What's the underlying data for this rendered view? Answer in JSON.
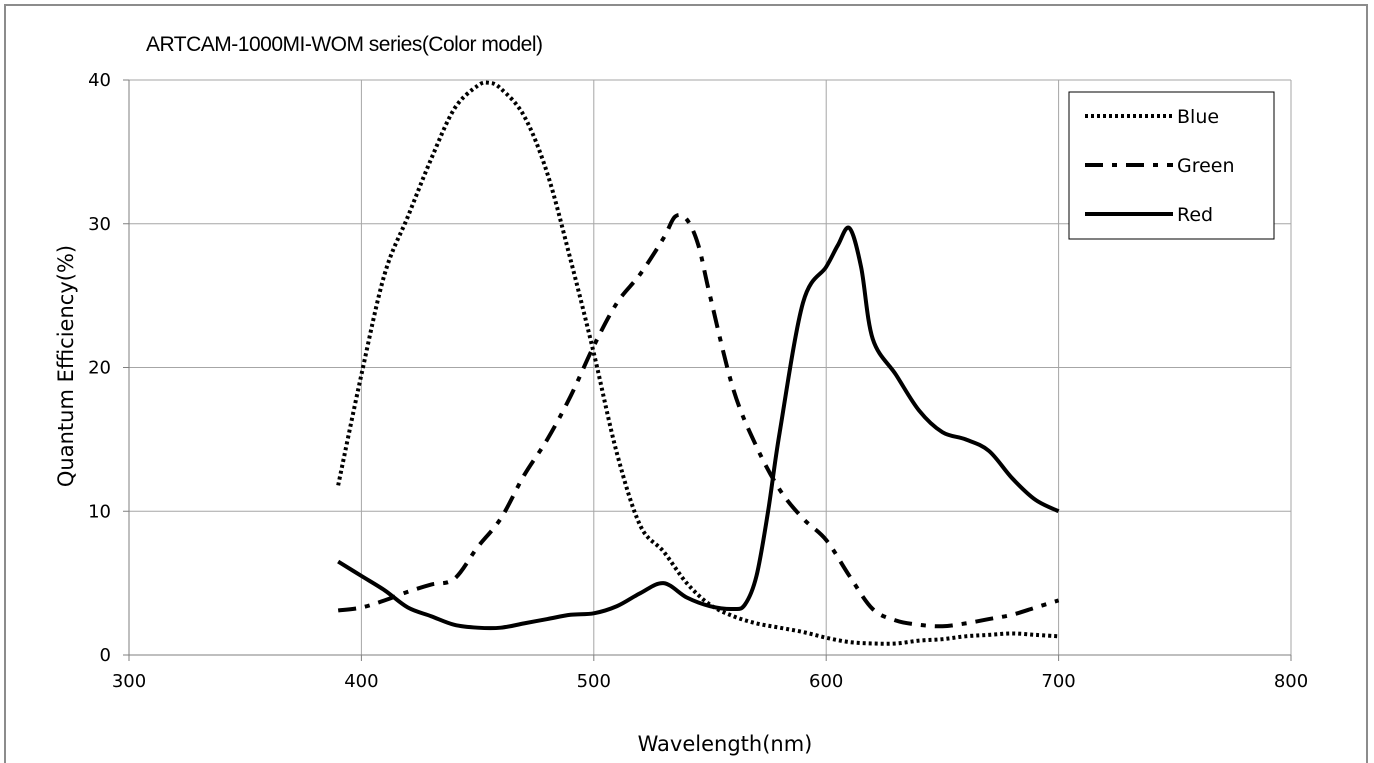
{
  "chart_data": {
    "type": "line",
    "title": "ARTCAM-1000MI-WOM series(Color model)",
    "xlabel": "Wavelength(nm)",
    "ylabel": "Quantum  Efficiency(%)",
    "xlim": [
      300,
      800
    ],
    "ylim": [
      0,
      40
    ],
    "xticks": [
      300,
      400,
      500,
      600,
      700,
      800
    ],
    "yticks": [
      0,
      10,
      20,
      30,
      40
    ],
    "grid": true,
    "legend_position": "top-right",
    "series": [
      {
        "name": "Blue",
        "style": "dotted",
        "color": "#000000",
        "x": [
          390,
          400,
          410,
          420,
          430,
          440,
          450,
          455,
          460,
          470,
          480,
          490,
          500,
          510,
          520,
          530,
          540,
          550,
          560,
          570,
          580,
          590,
          600,
          610,
          620,
          630,
          640,
          650,
          660,
          670,
          680,
          690,
          700
        ],
        "y": [
          11.8,
          19.5,
          26.5,
          30.5,
          34.5,
          38.0,
          39.6,
          39.8,
          39.4,
          37.5,
          33.5,
          27.5,
          21.0,
          14.0,
          9.0,
          7.2,
          5.0,
          3.5,
          2.7,
          2.2,
          1.9,
          1.6,
          1.2,
          0.9,
          0.8,
          0.8,
          1.0,
          1.1,
          1.3,
          1.4,
          1.5,
          1.4,
          1.3
        ]
      },
      {
        "name": "Green",
        "style": "dash-dot",
        "color": "#000000",
        "x": [
          390,
          400,
          410,
          420,
          430,
          440,
          450,
          460,
          470,
          480,
          490,
          500,
          510,
          520,
          530,
          535,
          540,
          545,
          550,
          560,
          570,
          580,
          590,
          600,
          610,
          620,
          630,
          640,
          650,
          660,
          670,
          680,
          690,
          700
        ],
        "y": [
          3.1,
          3.3,
          3.8,
          4.4,
          4.9,
          5.3,
          7.5,
          9.5,
          12.5,
          15.0,
          18.0,
          21.5,
          24.5,
          26.5,
          29.0,
          30.5,
          30.3,
          28.5,
          25.0,
          18.5,
          14.5,
          11.5,
          9.5,
          8.0,
          5.5,
          3.2,
          2.4,
          2.1,
          2.0,
          2.2,
          2.5,
          2.8,
          3.3,
          3.8
        ]
      },
      {
        "name": "Red",
        "style": "solid",
        "color": "#000000",
        "x": [
          390,
          400,
          410,
          420,
          430,
          440,
          450,
          460,
          470,
          480,
          490,
          500,
          510,
          520,
          530,
          540,
          550,
          560,
          565,
          570,
          575,
          580,
          590,
          600,
          605,
          610,
          615,
          620,
          630,
          640,
          650,
          660,
          670,
          680,
          690,
          700
        ],
        "y": [
          6.5,
          5.5,
          4.5,
          3.3,
          2.7,
          2.1,
          1.9,
          1.9,
          2.2,
          2.5,
          2.8,
          2.9,
          3.4,
          4.3,
          5.0,
          4.0,
          3.4,
          3.2,
          3.5,
          5.5,
          10.0,
          15.5,
          24.5,
          27.0,
          28.5,
          29.7,
          27.0,
          22.0,
          19.5,
          17.0,
          15.5,
          15.0,
          14.2,
          12.3,
          10.8,
          10.0
        ]
      }
    ]
  }
}
